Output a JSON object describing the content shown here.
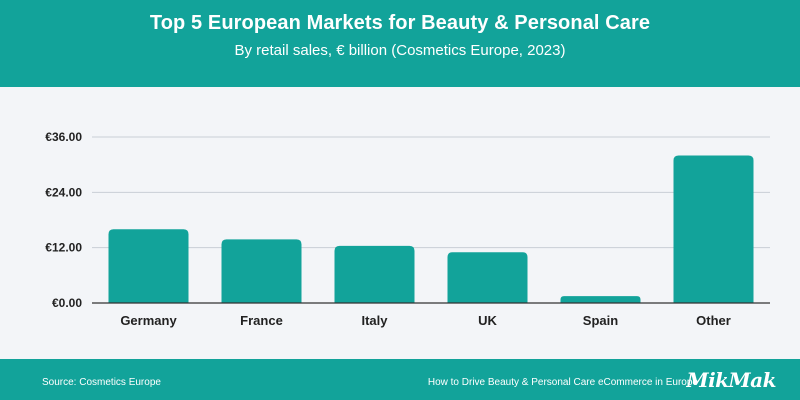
{
  "header": {
    "title": "Top 5 European Markets for Beauty & Personal Care",
    "subtitle": "By retail sales, € billion (Cosmetics Europe, 2023)"
  },
  "footer": {
    "source": "Source: Cosmetics Europe",
    "note": "How to Drive Beauty & Personal Care eCommerce in Europe",
    "brand": "MikMak"
  },
  "colors": {
    "brand": "#12a39a",
    "bar": "#12a39a",
    "plot_background": "#f3f5f8",
    "axis": "#333333",
    "gridline": "#c9ced6",
    "text": "#222222"
  },
  "chart_data": {
    "type": "bar",
    "title": "Top 5 European Markets for Beauty & Personal Care",
    "subtitle": "By retail sales, € billion (Cosmetics Europe, 2023)",
    "categories": [
      "Germany",
      "France",
      "Italy",
      "UK",
      "Spain",
      "Other"
    ],
    "values": [
      16.0,
      13.8,
      12.4,
      11.0,
      1.5,
      32.0
    ],
    "yticks": [
      0,
      12,
      24,
      36
    ],
    "ytick_labels": [
      "€0.00",
      "€12.00",
      "€24.00",
      "€36.00"
    ],
    "ylim": [
      0,
      36
    ],
    "xlabel": "",
    "ylabel": "",
    "grid": true,
    "legend": false
  }
}
